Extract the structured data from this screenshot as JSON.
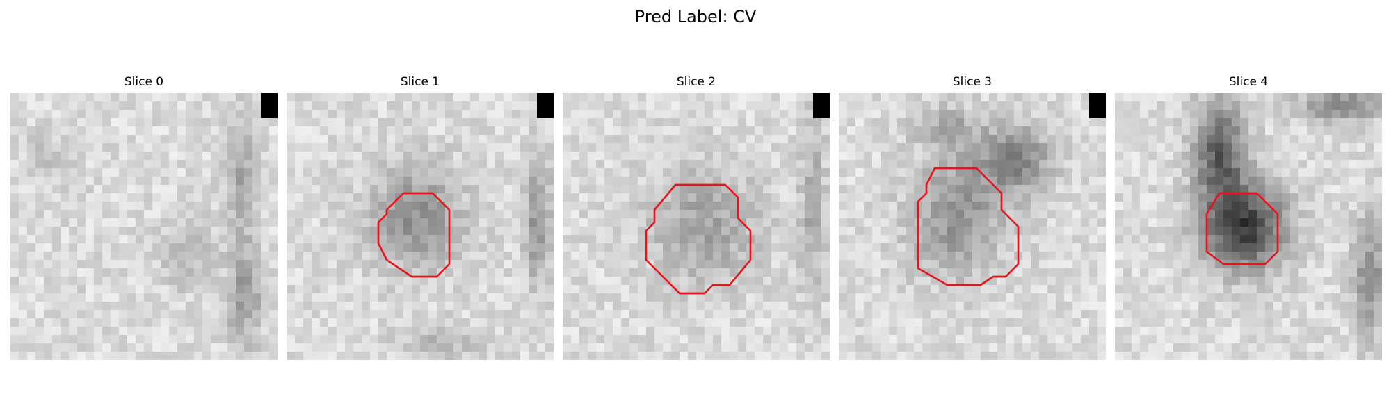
{
  "figure": {
    "title": "Pred Label: CV"
  },
  "colors": {
    "contour": "#e8141a",
    "marker": "#000000",
    "background": "#ffffff"
  },
  "grid_size": 32,
  "panels": [
    {
      "title": "Slice 0",
      "has_marker": true,
      "contour": [],
      "dark_regions": [
        {
          "cx": 27.5,
          "cy": 10,
          "rx": 1.6,
          "ry": 7,
          "d": 0.22
        },
        {
          "cx": 28,
          "cy": 24,
          "rx": 2,
          "ry": 6,
          "d": 0.25
        },
        {
          "cx": 21,
          "cy": 19,
          "rx": 3,
          "ry": 4,
          "d": 0.14
        },
        {
          "cx": 5,
          "cy": 8,
          "rx": 3,
          "ry": 3,
          "d": 0.1
        }
      ]
    },
    {
      "title": "Slice 1",
      "has_marker": true,
      "contour": [
        [
          14,
          12
        ],
        [
          17.5,
          12
        ],
        [
          19.5,
          14
        ],
        [
          19.5,
          20.5
        ],
        [
          18,
          22
        ],
        [
          15,
          22
        ],
        [
          12,
          20
        ],
        [
          11,
          18
        ],
        [
          11,
          15.5
        ],
        [
          12,
          14.5
        ],
        [
          12,
          14
        ]
      ],
      "dark_regions": [
        {
          "cx": 15.5,
          "cy": 15,
          "rx": 5.5,
          "ry": 6,
          "d": 0.3
        },
        {
          "cx": 30,
          "cy": 15,
          "rx": 1.5,
          "ry": 8,
          "d": 0.28
        },
        {
          "cx": 18,
          "cy": 30,
          "rx": 4,
          "ry": 2,
          "d": 0.18
        }
      ]
    },
    {
      "title": "Slice 2",
      "has_marker": true,
      "contour": [
        [
          13.5,
          11
        ],
        [
          19.5,
          11
        ],
        [
          21,
          12.5
        ],
        [
          21,
          15
        ],
        [
          22.5,
          16.5
        ],
        [
          22.5,
          20
        ],
        [
          20,
          23
        ],
        [
          18,
          23
        ],
        [
          17,
          24
        ],
        [
          14,
          24
        ],
        [
          12,
          22
        ],
        [
          10,
          20
        ],
        [
          10,
          16.5
        ],
        [
          11,
          15.5
        ],
        [
          11,
          14
        ]
      ],
      "dark_regions": [
        {
          "cx": 17,
          "cy": 16,
          "rx": 6.5,
          "ry": 7,
          "d": 0.22
        },
        {
          "cx": 30,
          "cy": 14,
          "rx": 1.5,
          "ry": 10,
          "d": 0.2
        }
      ]
    },
    {
      "title": "Slice 3",
      "has_marker": true,
      "contour": [
        [
          11.5,
          9
        ],
        [
          16.5,
          9
        ],
        [
          19.5,
          12
        ],
        [
          19.5,
          14
        ],
        [
          21.5,
          16
        ],
        [
          21.5,
          20.5
        ],
        [
          20,
          22
        ],
        [
          18.5,
          22
        ],
        [
          17,
          23
        ],
        [
          13,
          23
        ],
        [
          9.5,
          21
        ],
        [
          9.5,
          13
        ],
        [
          10.5,
          12
        ],
        [
          10.5,
          11
        ]
      ],
      "dark_regions": [
        {
          "cx": 21,
          "cy": 8,
          "rx": 4.5,
          "ry": 4,
          "d": 0.35
        },
        {
          "cx": 14,
          "cy": 15,
          "rx": 5.5,
          "ry": 7,
          "d": 0.28
        },
        {
          "cx": 13,
          "cy": 4,
          "rx": 4,
          "ry": 2.5,
          "d": 0.18
        }
      ]
    },
    {
      "title": "Slice 4",
      "has_marker": false,
      "contour": [
        [
          12.5,
          12
        ],
        [
          17,
          12
        ],
        [
          19.5,
          14.5
        ],
        [
          19.5,
          19
        ],
        [
          18,
          20.5
        ],
        [
          13,
          20.5
        ],
        [
          11,
          19
        ],
        [
          11,
          14.5
        ]
      ],
      "dark_regions": [
        {
          "cx": 15.5,
          "cy": 16,
          "rx": 5,
          "ry": 5,
          "d": 0.62
        },
        {
          "cx": 12.5,
          "cy": 7,
          "rx": 3,
          "ry": 6,
          "d": 0.5
        },
        {
          "cx": 27,
          "cy": 1.5,
          "rx": 5,
          "ry": 2,
          "d": 0.35
        },
        {
          "cx": 30.5,
          "cy": 22,
          "rx": 2,
          "ry": 7,
          "d": 0.3
        }
      ]
    }
  ]
}
